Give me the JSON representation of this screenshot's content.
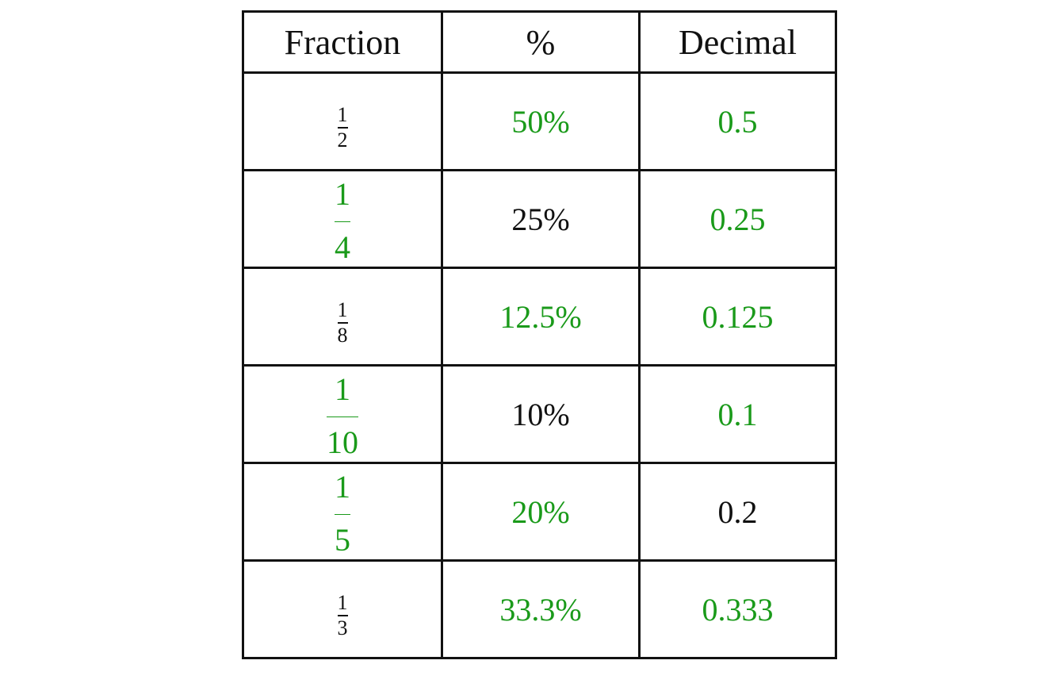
{
  "headers": [
    "Fraction",
    "%",
    "Decimal"
  ],
  "colors": {
    "given": "#111111",
    "answer": "#1a9a1a",
    "border": "#111111"
  },
  "rows": [
    {
      "fraction": {
        "numerator": "1",
        "denominator": "2",
        "answered": false
      },
      "percent": {
        "value": "50%",
        "answered": true
      },
      "decimal": {
        "value": "0.5",
        "answered": true
      }
    },
    {
      "fraction": {
        "numerator": "1",
        "denominator": "4",
        "answered": true
      },
      "percent": {
        "value": "25%",
        "answered": false
      },
      "decimal": {
        "value": "0.25",
        "answered": true
      }
    },
    {
      "fraction": {
        "numerator": "1",
        "denominator": "8",
        "answered": false
      },
      "percent": {
        "value": "12.5%",
        "answered": true
      },
      "decimal": {
        "value": "0.125",
        "answered": true
      }
    },
    {
      "fraction": {
        "numerator": "1",
        "denominator": "10",
        "answered": true
      },
      "percent": {
        "value": "10%",
        "answered": false
      },
      "decimal": {
        "value": "0.1",
        "answered": true
      }
    },
    {
      "fraction": {
        "numerator": "1",
        "denominator": "5",
        "answered": true
      },
      "percent": {
        "value": "20%",
        "answered": true
      },
      "decimal": {
        "value": "0.2",
        "answered": false
      }
    },
    {
      "fraction": {
        "numerator": "1",
        "denominator": "3",
        "answered": false
      },
      "percent": {
        "value": "33.3%",
        "answered": true
      },
      "decimal": {
        "value": "0.333",
        "answered": true
      }
    }
  ]
}
